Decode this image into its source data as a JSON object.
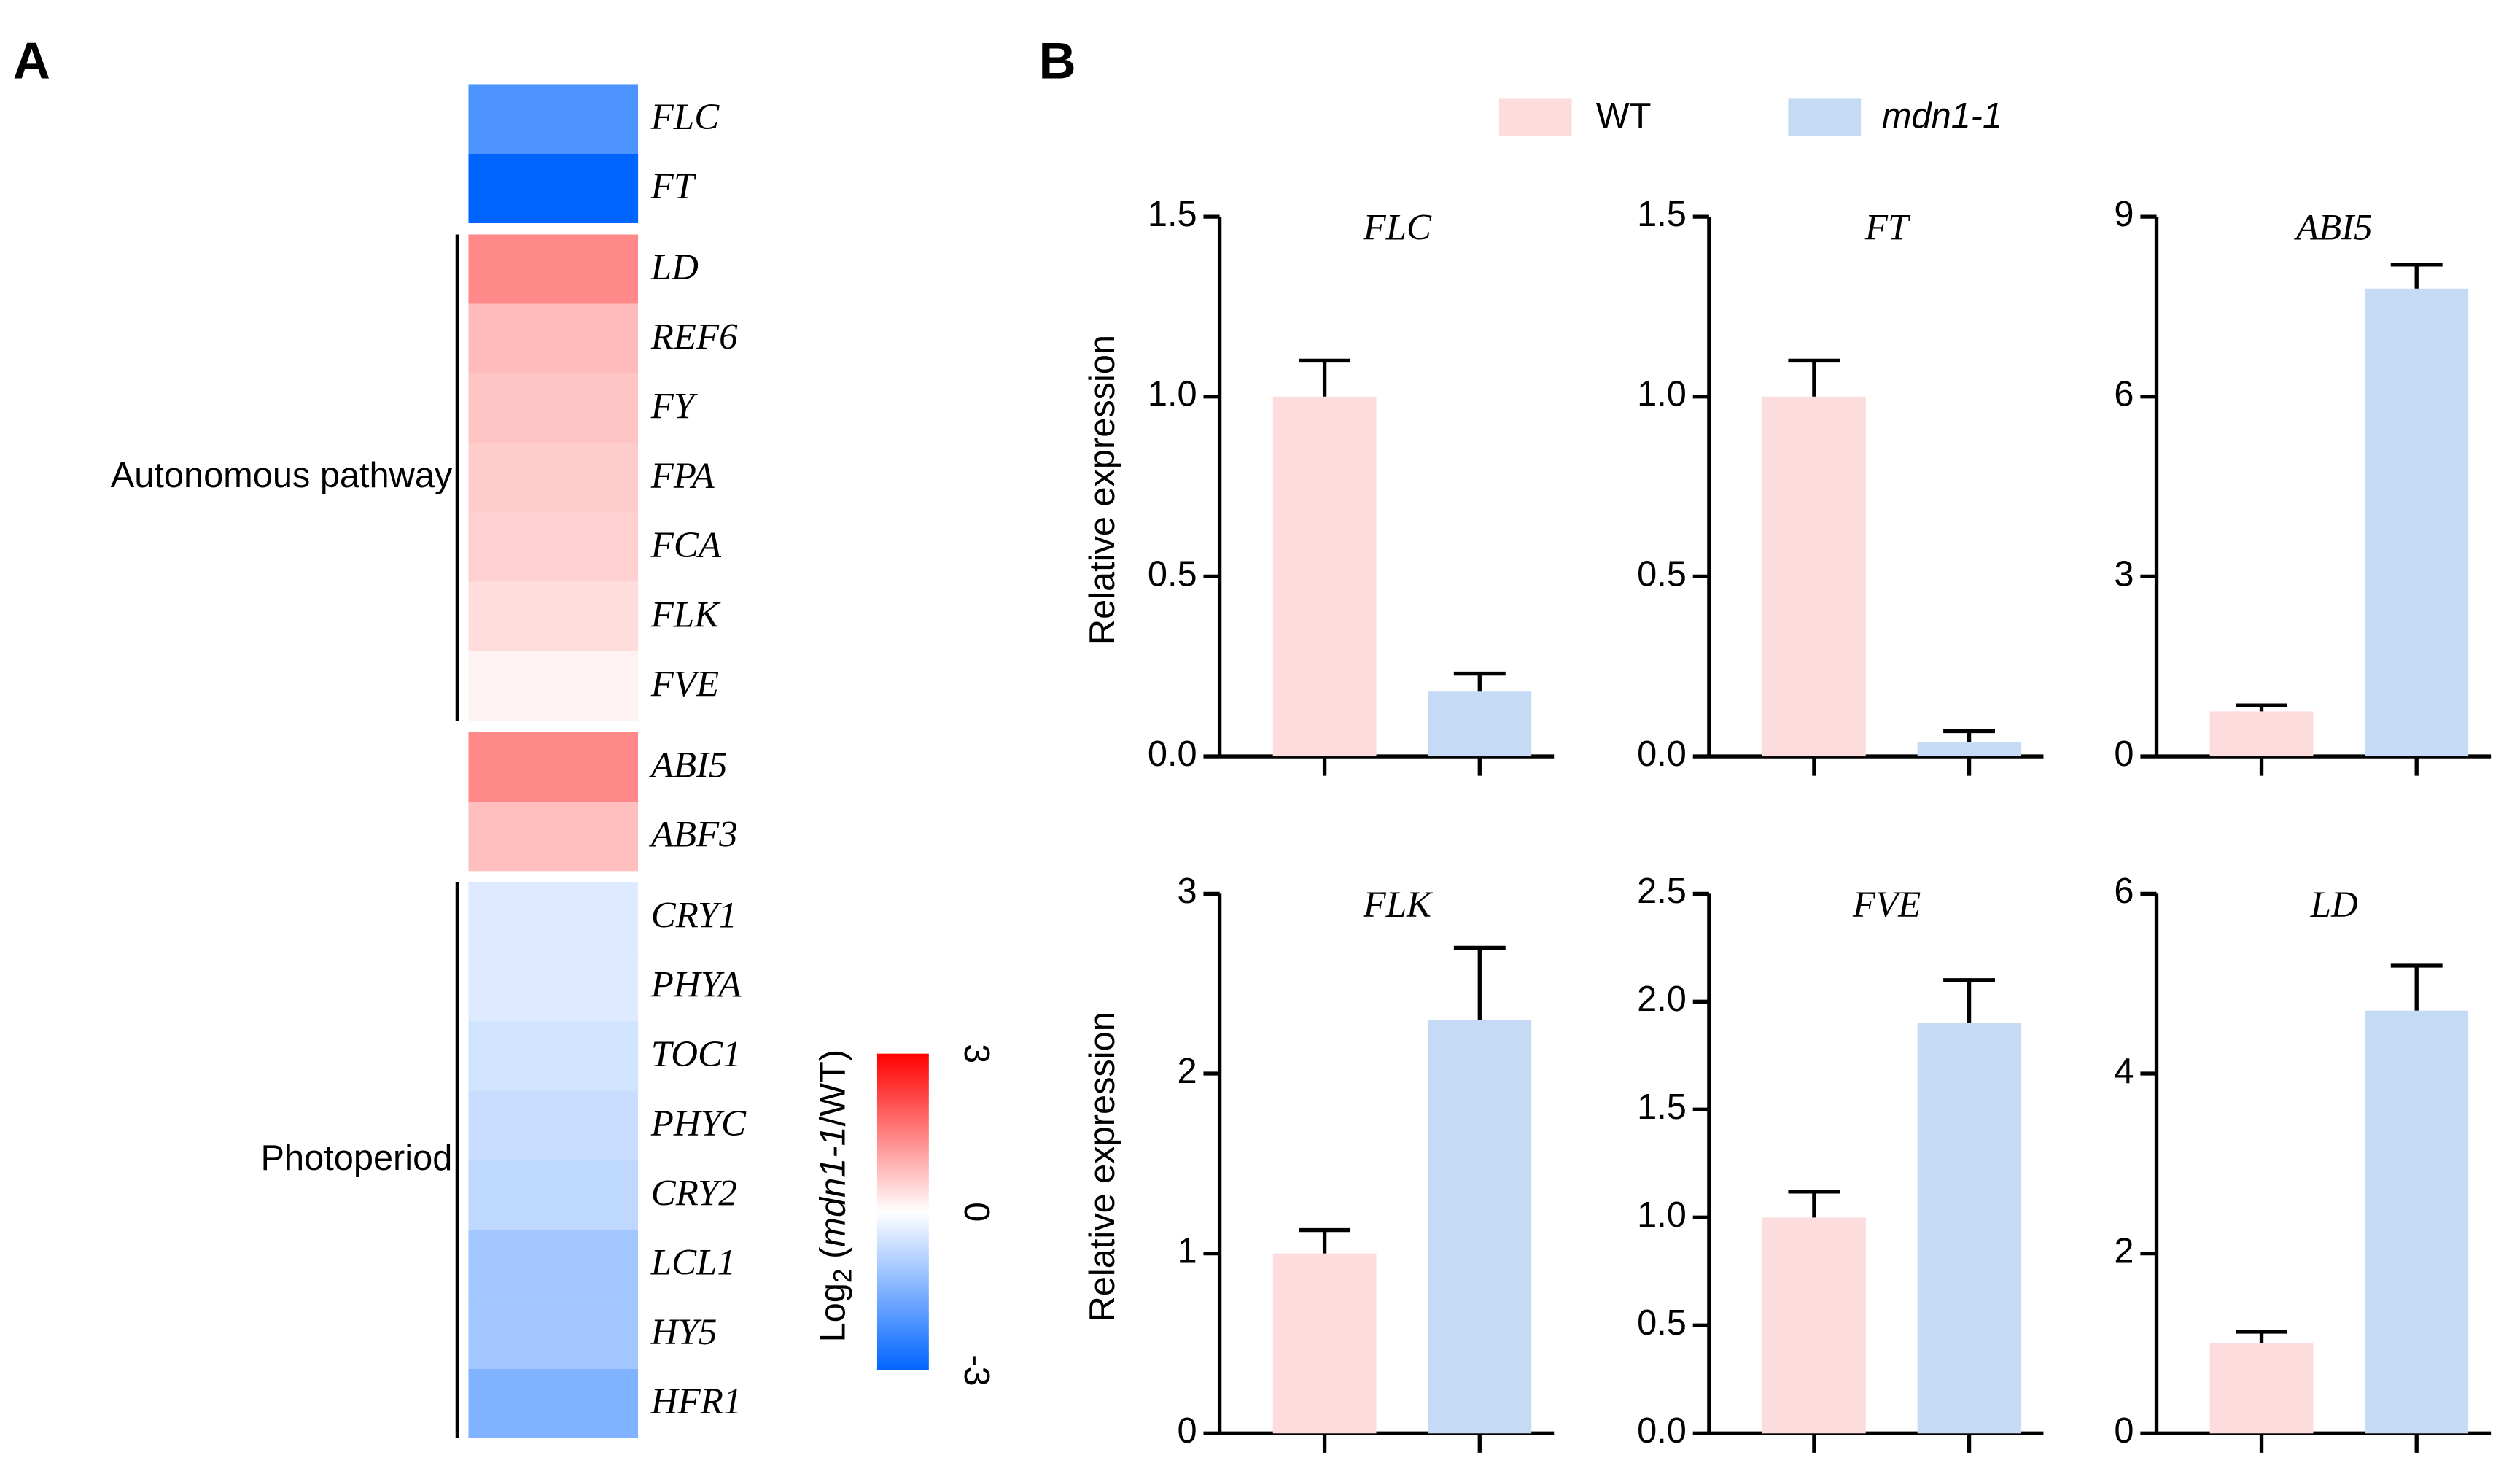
{
  "panels": {
    "a": "A",
    "b": "B"
  },
  "heatmap": {
    "blocks": [
      {
        "rows": [
          {
            "gene": "FLC",
            "value": -2.1
          },
          {
            "gene": "FT",
            "value": -3
          }
        ]
      },
      {
        "label": "Autonomous pathway",
        "rows": [
          {
            "gene": "LD",
            "value": 1.4
          },
          {
            "gene": "REF6",
            "value": 0.8
          },
          {
            "gene": "FY",
            "value": 0.7
          },
          {
            "gene": "FPA",
            "value": 0.6
          },
          {
            "gene": "FCA",
            "value": 0.55
          },
          {
            "gene": "FLK",
            "value": 0.4
          },
          {
            "gene": "FVE",
            "value": 0.15
          }
        ]
      },
      {
        "rows": [
          {
            "gene": "ABI5",
            "value": 1.4
          },
          {
            "gene": "ABF3",
            "value": 0.75
          }
        ]
      },
      {
        "label": "Photoperiod",
        "rows": [
          {
            "gene": "CRY1",
            "value": -0.4
          },
          {
            "gene": "PHYA",
            "value": -0.4
          },
          {
            "gene": "TOC1",
            "value": -0.55
          },
          {
            "gene": "PHYC",
            "value": -0.65
          },
          {
            "gene": "CRY2",
            "value": -0.75
          },
          {
            "gene": "LCL1",
            "value": -1.1
          },
          {
            "gene": "HY5",
            "value": -1.1
          },
          {
            "gene": "HFR1",
            "value": -1.5
          }
        ]
      }
    ],
    "colorbar": {
      "label": [
        "Log",
        "2",
        " (",
        "mdn1-1",
        "/WT)"
      ],
      "clim": [
        -3,
        3
      ],
      "ticks": [
        3,
        0,
        -3
      ],
      "colors": {
        "low": "#0064ff",
        "mid": "#ffffff",
        "high": "#ff0000"
      }
    }
  },
  "series": [
    {
      "name": "WT",
      "color": "#fcdcdc"
    },
    {
      "name": "mdn1-1",
      "color": "#c5daf5"
    }
  ],
  "chart_data": [
    {
      "type": "bar",
      "title": "FLC",
      "ylabel": "Relative expression",
      "values": [
        1.0,
        0.18
      ],
      "errors": [
        0.1,
        0.05
      ],
      "ylim": [
        0,
        1.5
      ],
      "yticks": [
        {
          "value": 0,
          "label": "0.0"
        },
        {
          "value": 0.5,
          "label": "0.5"
        },
        {
          "value": 1,
          "label": "1.0"
        },
        1.5
      ]
    },
    {
      "type": "bar",
      "title": "FT",
      "values": [
        1.0,
        0.04
      ],
      "errors": [
        0.1,
        0.03
      ],
      "ylim": [
        0,
        1.5
      ],
      "yticks": [
        {
          "value": 0,
          "label": "0.0"
        },
        {
          "value": 0.5,
          "label": "0.5"
        },
        {
          "value": 1,
          "label": "1.0"
        },
        1.5
      ]
    },
    {
      "type": "bar",
      "title": "ABI5",
      "values": [
        0.75,
        7.8
      ],
      "errors": [
        0.1,
        0.4
      ],
      "ylim": [
        0,
        9
      ],
      "yticks": [
        0,
        3,
        6,
        9
      ]
    },
    {
      "type": "bar",
      "title": "FLK",
      "ylabel": "Relative expression",
      "values": [
        1.0,
        2.3
      ],
      "errors": [
        0.13,
        0.4
      ],
      "ylim": [
        0,
        3
      ],
      "yticks": [
        0,
        1,
        2,
        3
      ]
    },
    {
      "type": "bar",
      "title": "FVE",
      "values": [
        1.0,
        1.9
      ],
      "errors": [
        0.12,
        0.2
      ],
      "ylim": [
        0,
        2.5
      ],
      "yticks": [
        {
          "value": 0,
          "label": "0.0"
        },
        0.5,
        {
          "value": 1,
          "label": "1.0"
        },
        1.5,
        {
          "value": 2,
          "label": "2.0"
        },
        2.5
      ]
    },
    {
      "type": "bar",
      "title": "LD",
      "values": [
        1.0,
        4.7
      ],
      "errors": [
        0.13,
        0.5
      ],
      "ylim": [
        0,
        6
      ],
      "yticks": [
        0,
        2,
        4,
        6
      ]
    }
  ]
}
